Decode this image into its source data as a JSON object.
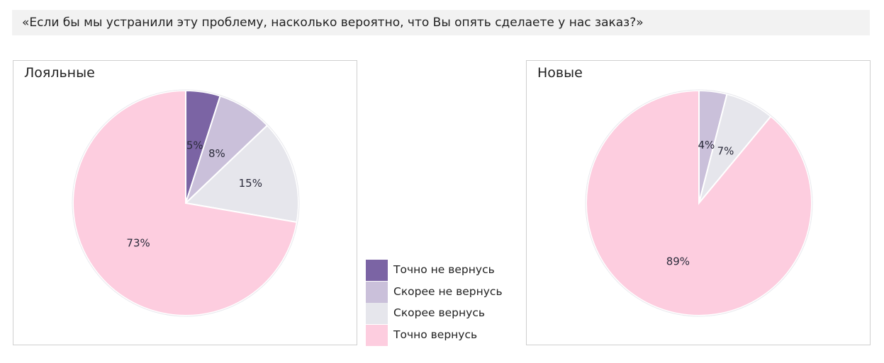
{
  "question": "«Если бы мы устранили эту проблему, насколько вероятно, что Вы опять сделаете у нас заказ?»",
  "legend": [
    {
      "label": "Точно не вернусь",
      "color": "#7b64a4"
    },
    {
      "label": "Скорее не вернусь",
      "color": "#cac0da"
    },
    {
      "label": "Скорее вернусь",
      "color": "#e6e6ec"
    },
    {
      "label": "Точно вернусь",
      "color": "#fdcddf"
    }
  ],
  "chart_data": [
    {
      "type": "pie",
      "title": "Лояльные",
      "categories": [
        "Точно не вернусь",
        "Скорее не вернусь",
        "Скорее вернусь",
        "Точно вернусь"
      ],
      "values": [
        5,
        8,
        15,
        73
      ],
      "labels": [
        "5%",
        "8%",
        "15%",
        "73%"
      ],
      "colors": [
        "#7b64a4",
        "#cac0da",
        "#e6e6ec",
        "#fdcddf"
      ]
    },
    {
      "type": "pie",
      "title": "Новые",
      "categories": [
        "Скорее не вернусь",
        "Скорее вернусь",
        "Точно вернусь"
      ],
      "values": [
        4,
        7,
        89
      ],
      "labels": [
        "4%",
        "7%",
        "89%"
      ],
      "colors": [
        "#cac0da",
        "#e6e6ec",
        "#fdcddf"
      ]
    }
  ]
}
